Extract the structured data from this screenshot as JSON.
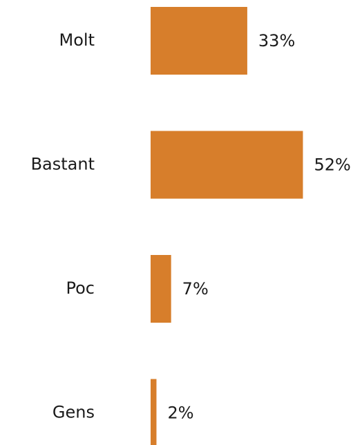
{
  "chart_data": {
    "type": "bar",
    "orientation": "horizontal",
    "categories": [
      "Molt",
      "Bastant",
      "Poc",
      "Gens"
    ],
    "values": [
      33,
      52,
      7,
      2
    ],
    "value_labels": [
      "33%",
      "52%",
      "7%",
      "2%"
    ],
    "color": "#d77e2b"
  }
}
